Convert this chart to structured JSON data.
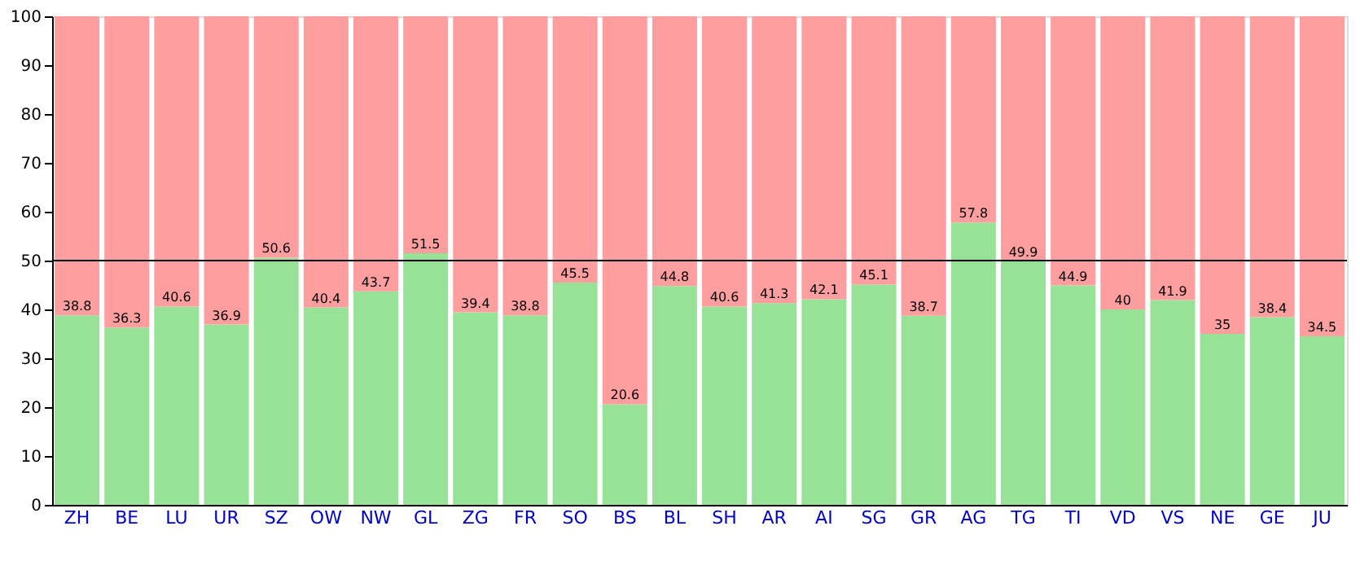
{
  "chart_data": {
    "type": "bar",
    "stacked": true,
    "categories": [
      "ZH",
      "BE",
      "LU",
      "UR",
      "SZ",
      "OW",
      "NW",
      "GL",
      "ZG",
      "FR",
      "SO",
      "BS",
      "BL",
      "SH",
      "AR",
      "AI",
      "SG",
      "GR",
      "AG",
      "TG",
      "TI",
      "VD",
      "VS",
      "NE",
      "GE",
      "JU"
    ],
    "series": [
      {
        "color": "#98e298",
        "values": [
          38.8,
          36.3,
          40.6,
          36.9,
          50.6,
          40.4,
          43.7,
          51.5,
          39.4,
          38.8,
          45.5,
          20.6,
          44.8,
          40.6,
          41.3,
          42.1,
          45.1,
          38.7,
          57.8,
          49.9,
          44.9,
          40,
          41.9,
          35,
          38.4,
          34.5
        ],
        "value_labels": [
          "38.8",
          "36.3",
          "40.6",
          "36.9",
          "50.6",
          "40.4",
          "43.7",
          "51.5",
          "39.4",
          "38.8",
          "45.5",
          "20.6",
          "44.8",
          "40.6",
          "41.3",
          "42.1",
          "45.1",
          "38.7",
          "57.8",
          "49.9",
          "44.9",
          "40",
          "41.9",
          "35",
          "38.4",
          "34.5"
        ]
      },
      {
        "color": "#ff9e9e",
        "values": [
          61.2,
          63.7,
          59.4,
          63.1,
          49.4,
          59.6,
          56.3,
          48.5,
          60.6,
          61.2,
          54.5,
          79.4,
          55.2,
          59.4,
          58.7,
          57.9,
          54.9,
          61.3,
          42.2,
          50.1,
          55.1,
          60,
          58.1,
          65,
          61.6,
          65.5
        ]
      }
    ],
    "ylim": [
      0,
      100
    ],
    "yticks": [
      0,
      10,
      20,
      30,
      40,
      50,
      60,
      70,
      80,
      90,
      100
    ],
    "grid": false,
    "ref_lines": [
      {
        "axis": "y",
        "value": 50,
        "color": "#000000"
      }
    ]
  }
}
